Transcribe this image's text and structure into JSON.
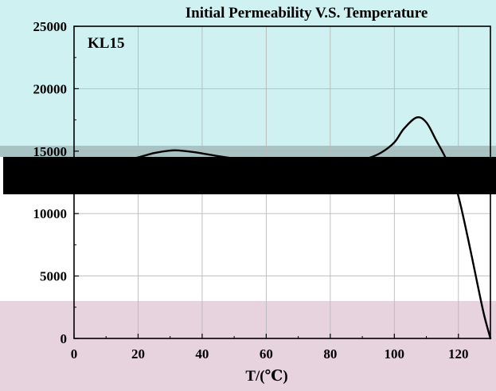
{
  "chart_data": {
    "type": "line",
    "title": "Initial Permeability V.S. Temperature",
    "xlabel": "T/(℃)",
    "ylabel": "",
    "annotation": "KL15",
    "xlim": [
      0,
      130
    ],
    "ylim": [
      0,
      25000
    ],
    "xticks": [
      0,
      20,
      40,
      60,
      80,
      100,
      120
    ],
    "yticks": [
      0,
      5000,
      10000,
      15000,
      20000,
      25000
    ],
    "grid": true,
    "series": [
      {
        "color": "#000000",
        "x": [
          -5,
          0,
          10,
          20,
          25,
          30,
          33,
          38,
          45,
          52,
          60,
          70,
          80,
          88,
          92,
          96,
          100,
          103,
          107,
          110,
          113,
          117,
          120,
          123,
          126,
          128,
          130
        ],
        "y": [
          14000,
          13800,
          13900,
          14500,
          14850,
          15050,
          15050,
          14900,
          14600,
          14350,
          14150,
          14100,
          14150,
          14250,
          14450,
          14900,
          15700,
          16800,
          17700,
          17300,
          15900,
          13900,
          11400,
          8000,
          4300,
          1900,
          0
        ]
      }
    ]
  },
  "colors": {
    "band_top": "#cff1f1",
    "band_mid": "#a9c2c3",
    "band_bottom": "#e6d3de",
    "redaction": "#000000",
    "line": "#000000",
    "grid": "#b9b9b9"
  }
}
